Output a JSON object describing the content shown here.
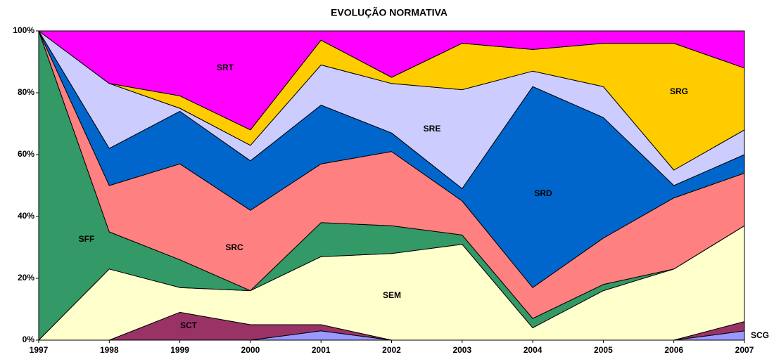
{
  "chart_data": {
    "type": "stacked_area",
    "title": "EVOLUÇÃO NORMATIVA",
    "x": [
      1997,
      1998,
      1999,
      2000,
      2001,
      2002,
      2003,
      2004,
      2005,
      2006,
      2007
    ],
    "xlim": [
      1997,
      2007
    ],
    "xticks": [
      1997,
      1998,
      1999,
      2000,
      2001,
      2002,
      2003,
      2004,
      2005,
      2006,
      2007
    ],
    "ylim": [
      0,
      100
    ],
    "yticks": [
      {
        "value": 0,
        "label": "0%"
      },
      {
        "value": 20,
        "label": "20%"
      },
      {
        "value": 40,
        "label": "40%"
      },
      {
        "value": 60,
        "label": "60%"
      },
      {
        "value": 80,
        "label": "80%"
      },
      {
        "value": 100,
        "label": "100%"
      }
    ],
    "grid": false,
    "series": [
      {
        "name": "SCG",
        "color": "#9999ff",
        "values": [
          0,
          0,
          0,
          0,
          3,
          0,
          0,
          0,
          0,
          0,
          3
        ]
      },
      {
        "name": "SCT",
        "color": "#993366",
        "values": [
          0,
          0,
          9,
          5,
          2,
          0,
          0,
          0,
          0,
          0,
          3
        ]
      },
      {
        "name": "SEM",
        "color": "#ffffcc",
        "values": [
          0,
          23,
          8,
          11,
          22,
          28,
          31,
          4,
          16,
          23,
          31
        ]
      },
      {
        "name": "SFF",
        "color": "#339966",
        "values": [
          100,
          12,
          9,
          0,
          11,
          9,
          3,
          3,
          2,
          0,
          0
        ]
      },
      {
        "name": "SRC",
        "color": "#ff8080",
        "values": [
          0,
          15,
          31,
          26,
          19,
          24,
          11,
          10,
          15,
          23,
          17
        ]
      },
      {
        "name": "SRD",
        "color": "#0066cc",
        "values": [
          0,
          12,
          17,
          16,
          19,
          6,
          4,
          65,
          39,
          4,
          6
        ]
      },
      {
        "name": "SRE",
        "color": "#ccccff",
        "values": [
          0,
          21,
          1,
          5,
          13,
          16,
          32,
          5,
          10,
          5,
          8
        ]
      },
      {
        "name": "SRG",
        "color": "#ffcc00",
        "values": [
          0,
          0,
          4,
          5,
          8,
          2,
          15,
          7,
          14,
          41,
          20
        ]
      },
      {
        "name": "SRT",
        "color": "#ff00ff",
        "values": [
          0,
          17,
          21,
          32,
          3,
          15,
          4,
          6,
          4,
          4,
          12
        ]
      }
    ]
  }
}
